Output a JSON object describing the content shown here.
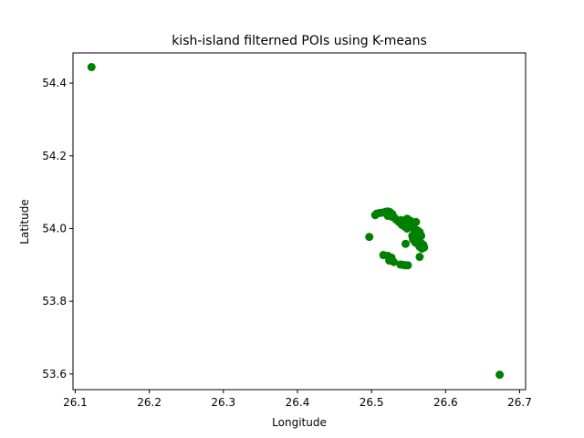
{
  "chart_data": {
    "type": "scatter",
    "title": "kish-island filterned POIs using K-means",
    "xlabel": "Longitude",
    "ylabel": "Latitude",
    "xlim": [
      26.097,
      26.708
    ],
    "ylim": [
      53.557,
      54.483
    ],
    "xticks": [
      "26.1",
      "26.2",
      "26.3",
      "26.4",
      "26.5",
      "26.6",
      "26.7"
    ],
    "yticks": [
      "53.6",
      "53.8",
      "54.0",
      "54.2",
      "54.4"
    ],
    "grid": false,
    "marker_color": "#008000",
    "points": [
      [
        26.122,
        54.444
      ],
      [
        26.673,
        53.598
      ],
      [
        26.497,
        53.977
      ],
      [
        26.505,
        54.037
      ],
      [
        26.507,
        54.041
      ],
      [
        26.511,
        54.043
      ],
      [
        26.515,
        54.044
      ],
      [
        26.519,
        54.046
      ],
      [
        26.522,
        54.047
      ],
      [
        26.525,
        54.045
      ],
      [
        26.522,
        54.035
      ],
      [
        26.527,
        54.033
      ],
      [
        26.531,
        54.03
      ],
      [
        26.528,
        54.04
      ],
      [
        26.533,
        54.025
      ],
      [
        26.537,
        54.02
      ],
      [
        26.54,
        54.023
      ],
      [
        26.543,
        54.015
      ],
      [
        26.545,
        54.005
      ],
      [
        26.541,
        54.01
      ],
      [
        26.548,
        54.027
      ],
      [
        26.55,
        54.02
      ],
      [
        26.553,
        54.012
      ],
      [
        26.556,
        54.007
      ],
      [
        26.552,
        54.022
      ],
      [
        26.557,
        54.0
      ],
      [
        26.56,
        54.018
      ],
      [
        26.562,
        53.995
      ],
      [
        26.565,
        53.99
      ],
      [
        26.567,
        53.98
      ],
      [
        26.563,
        53.985
      ],
      [
        26.558,
        53.99
      ],
      [
        26.56,
        53.972
      ],
      [
        26.563,
        53.965
      ],
      [
        26.567,
        53.96
      ],
      [
        26.57,
        53.955
      ],
      [
        26.565,
        53.95
      ],
      [
        26.568,
        53.945
      ],
      [
        26.571,
        53.948
      ],
      [
        26.562,
        53.958
      ],
      [
        26.559,
        53.962
      ],
      [
        26.556,
        53.97
      ],
      [
        26.546,
        53.958
      ],
      [
        26.565,
        53.922
      ],
      [
        26.516,
        53.927
      ],
      [
        26.522,
        53.925
      ],
      [
        26.527,
        53.92
      ],
      [
        26.524,
        53.912
      ],
      [
        26.53,
        53.908
      ],
      [
        26.539,
        53.901
      ],
      [
        26.543,
        53.9
      ],
      [
        26.546,
        53.899
      ],
      [
        26.549,
        53.899
      ],
      [
        26.537,
        54.018
      ],
      [
        26.548,
        54.0
      ],
      [
        26.555,
        53.98
      ],
      [
        26.561,
        53.978
      ]
    ]
  }
}
